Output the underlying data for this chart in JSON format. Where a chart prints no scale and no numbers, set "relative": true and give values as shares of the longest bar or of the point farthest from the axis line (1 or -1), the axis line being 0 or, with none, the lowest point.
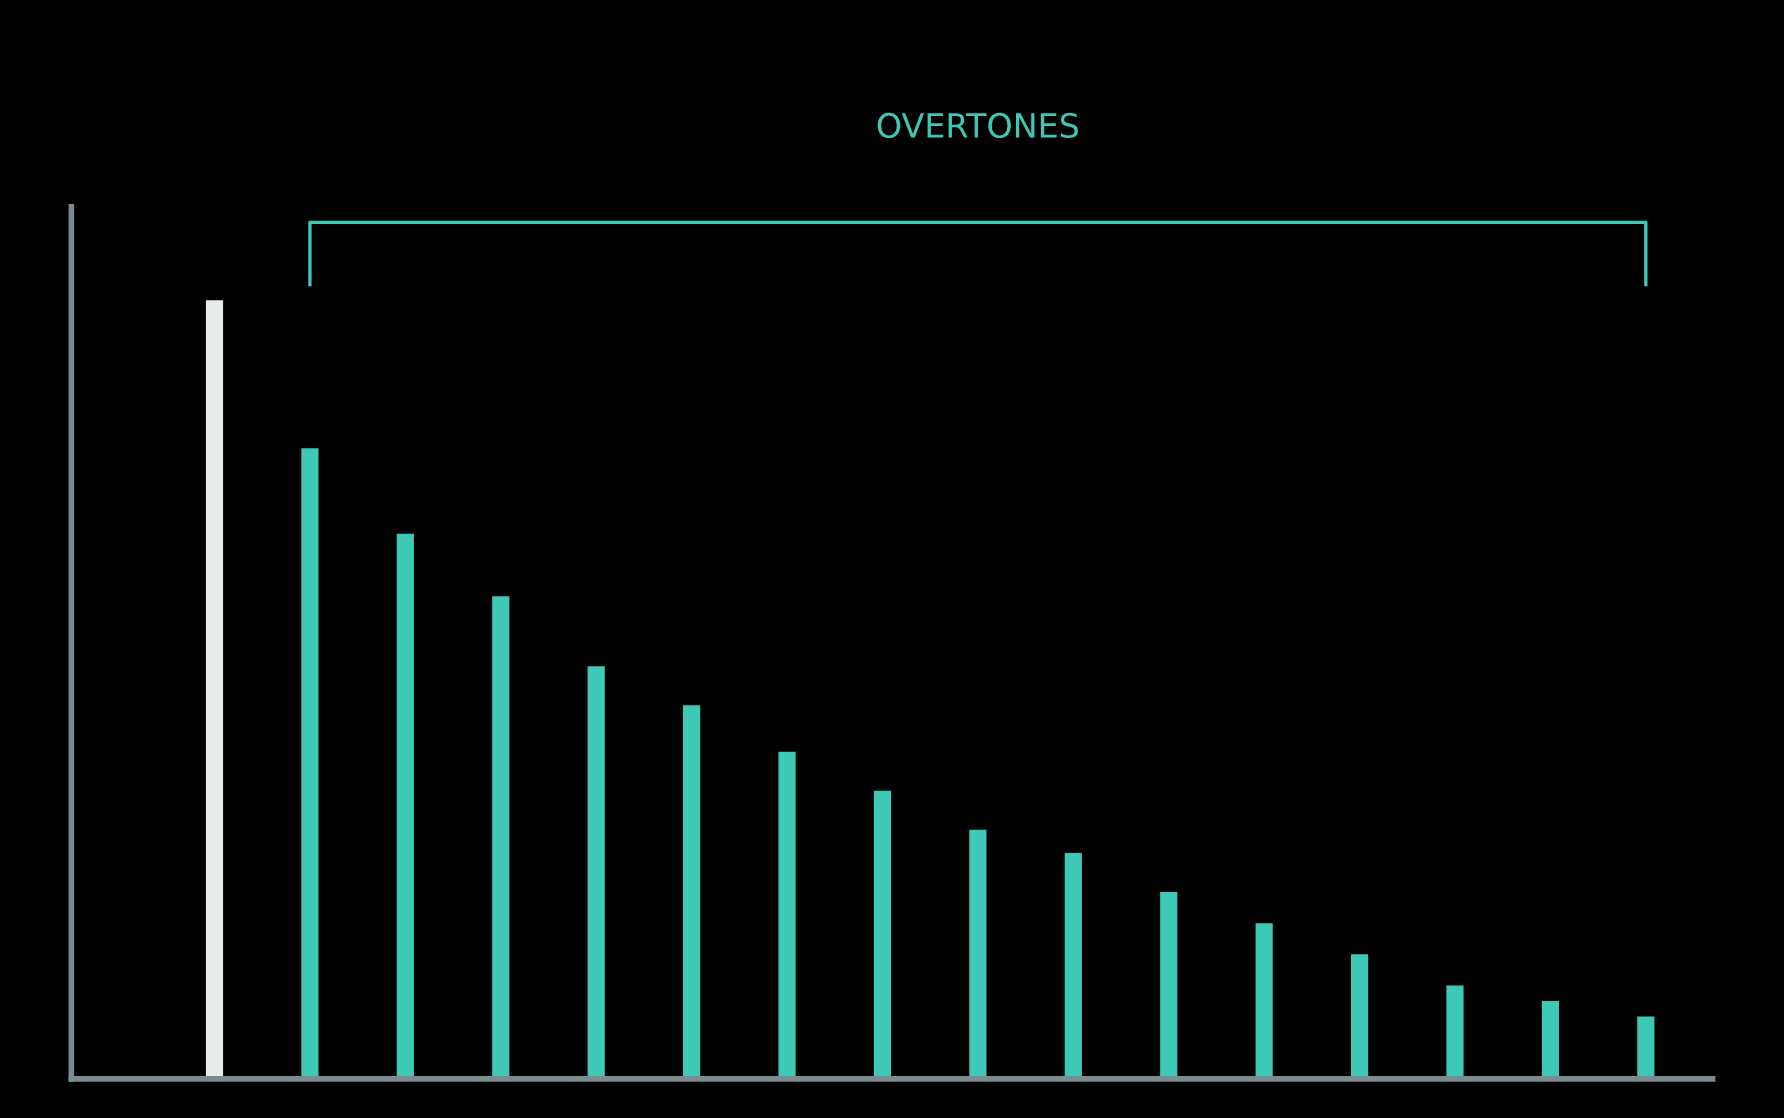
{
  "chart_data": {
    "type": "bar",
    "relative": true,
    "categories": [
      null,
      null,
      null,
      null,
      null,
      null,
      null,
      null,
      null,
      null,
      null,
      null,
      null,
      null,
      null,
      null
    ],
    "values": [
      1,
      0.81,
      0.7,
      0.62,
      0.53,
      0.48,
      0.42,
      0.37,
      0.32,
      0.29,
      0.24,
      0.2,
      0.16,
      0.12,
      0.1,
      0.08
    ],
    "colors": [
      "#e6ecea",
      "#3ec9b6",
      "#3ec9b6",
      "#3ec9b6",
      "#3ec9b6",
      "#3ec9b6",
      "#3ec9b6",
      "#3ec9b6",
      "#3ec9b6",
      "#3ec9b6",
      "#3ec9b6",
      "#3ec9b6",
      "#3ec9b6",
      "#3ec9b6",
      "#3ec9b6",
      "#3ec9b6"
    ],
    "annotations": [
      "OVERTONES"
    ],
    "grid": false,
    "legend": false
  }
}
